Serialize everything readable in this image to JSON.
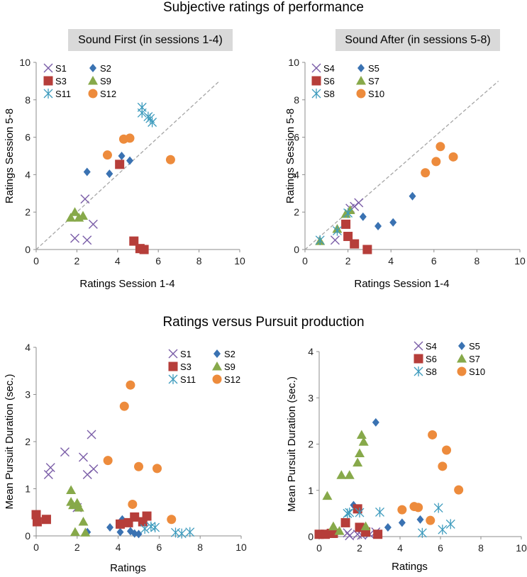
{
  "titles": {
    "top": "Subjective ratings of performance",
    "bottom": "Ratings versus Pursuit production"
  },
  "colors": {
    "cross": "#7b5ea8",
    "diamond": "#3a72b2",
    "square": "#b63e3a",
    "triangle": "#87a94a",
    "star": "#3d9bbd",
    "circle": "#ed8b3c",
    "axis": "#8c8c8c",
    "diagonal": "#a6a6a6",
    "badge": "#d9d9d9"
  },
  "chart_data": [
    {
      "type": "scatter",
      "badge": "Sound First (in sessions 1-4)",
      "xlabel": "Ratings Session 1-4",
      "ylabel": "Ratings Session 5-8",
      "xlim": [
        0,
        10
      ],
      "ylim": [
        0,
        10
      ],
      "xticks": [
        "0",
        "2",
        "4",
        "6",
        "8",
        "10"
      ],
      "yticks": [
        "0",
        "2",
        "4",
        "6",
        "8",
        "10"
      ],
      "diagonal": [
        0,
        9
      ],
      "legend_position": "top-left",
      "series": [
        {
          "name": "S1",
          "marker": "cross",
          "points": [
            [
              1.9,
              0.6
            ],
            [
              2.4,
              2.7
            ],
            [
              2.5,
              0.5
            ],
            [
              2.8,
              1.35
            ]
          ]
        },
        {
          "name": "S2",
          "marker": "diamond",
          "points": [
            [
              2.5,
              4.15
            ],
            [
              3.6,
              4.05
            ],
            [
              4.2,
              5.0
            ],
            [
              4.6,
              4.75
            ]
          ]
        },
        {
          "name": "S3",
          "marker": "square",
          "points": [
            [
              4.1,
              4.55
            ],
            [
              4.8,
              0.45
            ],
            [
              5.1,
              0.05
            ],
            [
              5.3,
              0.0
            ]
          ]
        },
        {
          "name": "S9",
          "marker": "triangle",
          "points": [
            [
              1.7,
              1.7
            ],
            [
              1.9,
              2.0
            ],
            [
              2.1,
              1.7
            ],
            [
              2.3,
              1.8
            ]
          ]
        },
        {
          "name": "S11",
          "marker": "star",
          "points": [
            [
              5.2,
              7.6
            ],
            [
              5.2,
              7.3
            ],
            [
              5.5,
              7.1
            ],
            [
              5.7,
              6.8
            ],
            [
              5.6,
              7.0
            ]
          ]
        },
        {
          "name": "S12",
          "marker": "circle",
          "points": [
            [
              3.5,
              5.05
            ],
            [
              4.3,
              5.9
            ],
            [
              4.6,
              5.95
            ],
            [
              6.6,
              4.8
            ]
          ]
        }
      ]
    },
    {
      "type": "scatter",
      "badge": "Sound After (in sessions 5-8)",
      "xlabel": "Ratings Session 1-4",
      "ylabel": "Ratings Session 5-8",
      "xlim": [
        0,
        10
      ],
      "ylim": [
        0,
        10
      ],
      "xticks": [
        "0",
        "2",
        "4",
        "6",
        "8",
        "10"
      ],
      "yticks": [
        "0",
        "2",
        "4",
        "6",
        "8",
        "10"
      ],
      "diagonal": [
        0,
        9
      ],
      "legend_position": "top-left",
      "series": [
        {
          "name": "S4",
          "marker": "cross",
          "points": [
            [
              1.4,
              0.5
            ],
            [
              2.3,
              2.3
            ],
            [
              2.5,
              2.5
            ],
            [
              2.1,
              2.2
            ]
          ]
        },
        {
          "name": "S5",
          "marker": "diamond",
          "points": [
            [
              2.7,
              1.75
            ],
            [
              3.4,
              1.25
            ],
            [
              4.1,
              1.45
            ],
            [
              5.0,
              2.85
            ]
          ]
        },
        {
          "name": "S6",
          "marker": "square",
          "points": [
            [
              1.9,
              1.35
            ],
            [
              2.0,
              0.7
            ],
            [
              2.3,
              0.3
            ],
            [
              2.9,
              0.0
            ]
          ]
        },
        {
          "name": "S7",
          "marker": "triangle",
          "points": [
            [
              0.7,
              0.45
            ],
            [
              1.5,
              1.1
            ],
            [
              1.9,
              1.9
            ],
            [
              2.1,
              2.1
            ]
          ]
        },
        {
          "name": "S8",
          "marker": "star",
          "points": [
            [
              0.7,
              0.5
            ],
            [
              1.5,
              1.0
            ],
            [
              2.0,
              1.95
            ]
          ]
        },
        {
          "name": "S10",
          "marker": "circle",
          "points": [
            [
              5.6,
              4.1
            ],
            [
              6.1,
              4.7
            ],
            [
              6.3,
              5.5
            ],
            [
              6.9,
              4.95
            ]
          ]
        }
      ]
    },
    {
      "type": "scatter",
      "xlabel": "Ratings",
      "ylabel": "Mean Pursuit Duration (sec.)",
      "xlim": [
        0,
        10
      ],
      "ylim": [
        0,
        4
      ],
      "xticks": [
        "0",
        "2",
        "4",
        "6",
        "8",
        "10"
      ],
      "yticks": [
        "0",
        "1",
        "2",
        "3",
        "4"
      ],
      "legend_position": "top-right",
      "series": [
        {
          "name": "S1",
          "marker": "cross",
          "points": [
            [
              0.6,
              1.3
            ],
            [
              0.7,
              1.45
            ],
            [
              1.4,
              1.78
            ],
            [
              2.0,
              0.6
            ],
            [
              2.3,
              1.67
            ],
            [
              2.5,
              1.3
            ],
            [
              2.7,
              2.15
            ],
            [
              2.8,
              1.42
            ]
          ]
        },
        {
          "name": "S2",
          "marker": "diamond",
          "points": [
            [
              2.5,
              0.08
            ],
            [
              3.6,
              0.18
            ],
            [
              4.1,
              0.08
            ],
            [
              4.2,
              0.35
            ],
            [
              4.6,
              0.1
            ],
            [
              4.8,
              0.05
            ],
            [
              5.0,
              0.04
            ]
          ]
        },
        {
          "name": "S3",
          "marker": "square",
          "points": [
            [
              0.0,
              0.45
            ],
            [
              0.05,
              0.3
            ],
            [
              0.5,
              0.35
            ],
            [
              4.1,
              0.25
            ],
            [
              4.5,
              0.28
            ],
            [
              4.8,
              0.4
            ],
            [
              5.2,
              0.3
            ],
            [
              5.4,
              0.42
            ]
          ]
        },
        {
          "name": "S9",
          "marker": "triangle",
          "points": [
            [
              1.7,
              0.97
            ],
            [
              1.7,
              0.72
            ],
            [
              1.8,
              0.65
            ],
            [
              1.9,
              0.08
            ],
            [
              2.0,
              0.7
            ],
            [
              2.1,
              0.6
            ],
            [
              2.3,
              0.3
            ],
            [
              2.4,
              0.07
            ]
          ]
        },
        {
          "name": "S11",
          "marker": "star",
          "points": [
            [
              5.3,
              0.15
            ],
            [
              5.6,
              0.2
            ],
            [
              5.8,
              0.18
            ],
            [
              6.8,
              0.07
            ],
            [
              7.1,
              0.05
            ],
            [
              7.5,
              0.08
            ]
          ]
        },
        {
          "name": "S12",
          "marker": "circle",
          "points": [
            [
              3.5,
              1.6
            ],
            [
              4.3,
              2.75
            ],
            [
              4.6,
              3.2
            ],
            [
              4.7,
              0.67
            ],
            [
              5.0,
              1.47
            ],
            [
              5.9,
              1.43
            ],
            [
              6.6,
              0.35
            ]
          ]
        }
      ]
    },
    {
      "type": "scatter",
      "xlabel": "Ratings",
      "ylabel": "Mean Pursuit Duration (sec.)",
      "xlim": [
        0,
        10
      ],
      "ylim": [
        0,
        4
      ],
      "xticks": [
        "0",
        "2",
        "4",
        "6",
        "8",
        "10"
      ],
      "yticks": [
        "0",
        "1",
        "2",
        "3",
        "4"
      ],
      "legend_position": "top-center",
      "series": [
        {
          "name": "S4",
          "marker": "cross",
          "points": [
            [
              1.4,
              0.08
            ],
            [
              1.5,
              0.02
            ],
            [
              1.9,
              0.05
            ],
            [
              2.1,
              0.03
            ],
            [
              2.5,
              0.05
            ],
            [
              2.8,
              0.1
            ]
          ]
        },
        {
          "name": "S5",
          "marker": "diamond",
          "points": [
            [
              1.7,
              0.68
            ],
            [
              2.8,
              2.47
            ],
            [
              3.4,
              0.2
            ],
            [
              4.1,
              0.3
            ],
            [
              5.0,
              0.37
            ]
          ]
        },
        {
          "name": "S6",
          "marker": "square",
          "points": [
            [
              0.0,
              0.05
            ],
            [
              0.3,
              0.05
            ],
            [
              0.6,
              0.07
            ],
            [
              0.7,
              0.07
            ],
            [
              1.3,
              0.3
            ],
            [
              1.9,
              0.6
            ],
            [
              2.0,
              0.2
            ],
            [
              2.3,
              0.1
            ],
            [
              2.9,
              0.05
            ]
          ]
        },
        {
          "name": "S7",
          "marker": "triangle",
          "points": [
            [
              0.4,
              0.88
            ],
            [
              0.7,
              0.22
            ],
            [
              1.0,
              0.12
            ],
            [
              1.1,
              1.33
            ],
            [
              1.5,
              1.33
            ],
            [
              1.9,
              1.6
            ],
            [
              2.0,
              1.8
            ],
            [
              2.1,
              2.2
            ],
            [
              2.2,
              2.05
            ],
            [
              2.3,
              0.22
            ]
          ]
        },
        {
          "name": "S8",
          "marker": "star",
          "points": [
            [
              1.4,
              0.5
            ],
            [
              1.5,
              0.52
            ],
            [
              2.0,
              0.52
            ],
            [
              3.0,
              0.53
            ],
            [
              5.1,
              0.08
            ],
            [
              5.9,
              0.62
            ],
            [
              6.1,
              0.15
            ],
            [
              6.5,
              0.27
            ]
          ]
        },
        {
          "name": "S10",
          "marker": "circle",
          "points": [
            [
              4.1,
              0.58
            ],
            [
              4.7,
              0.65
            ],
            [
              4.9,
              0.63
            ],
            [
              5.5,
              0.35
            ],
            [
              5.6,
              2.2
            ],
            [
              6.1,
              1.52
            ],
            [
              6.3,
              1.87
            ],
            [
              6.9,
              1.01
            ]
          ]
        }
      ]
    }
  ]
}
